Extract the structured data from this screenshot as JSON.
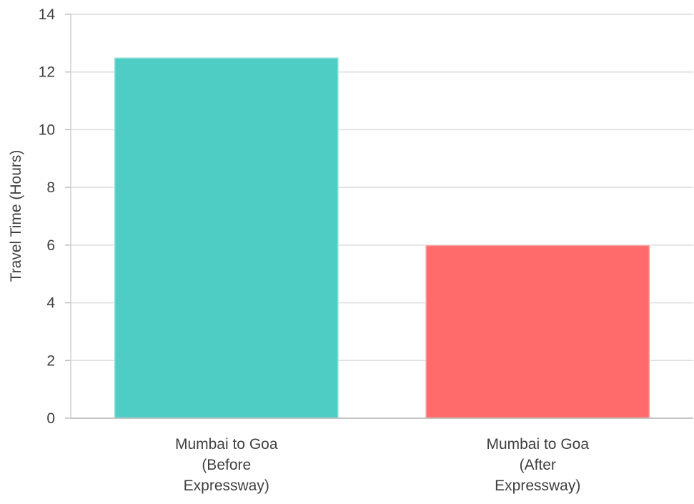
{
  "chart_data": {
    "type": "bar",
    "title": "",
    "xlabel": "",
    "ylabel": "Travel Time (Hours)",
    "categories": [
      [
        "Mumbai to Goa",
        "(Before",
        "Expressway)"
      ],
      [
        "Mumbai to Goa",
        "(After",
        "Expressway)"
      ]
    ],
    "values": [
      12.5,
      6
    ],
    "colors": [
      "#4ECDC4",
      "#FF6B6B"
    ],
    "ylim": [
      0,
      14
    ],
    "yticks": [
      0,
      2,
      4,
      6,
      8,
      10,
      12,
      14
    ],
    "grid": true,
    "legend": "none"
  }
}
